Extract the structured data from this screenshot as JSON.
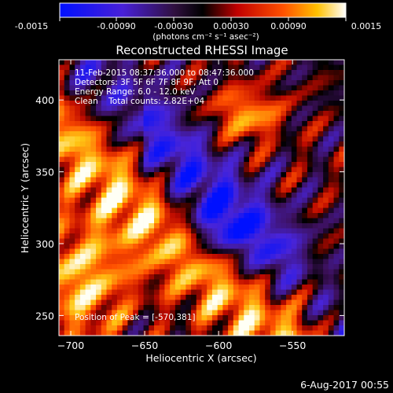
{
  "colorbar": {
    "ticks": [
      "-0.0015",
      "-0.00090",
      "-0.00030",
      "0.00030",
      "0.00090",
      "0.0015"
    ],
    "unit_label": "(photons cm⁻² s⁻¹ asec⁻²)",
    "min": -0.0015,
    "max": 0.0015
  },
  "chart_data": {
    "type": "heatmap",
    "title": "Reconstructed RHESSI Image",
    "xlabel": "Heliocentric X (arcsec)",
    "ylabel": "Heliocentric Y (arcsec)",
    "xlim": [
      -708,
      -515
    ],
    "ylim": [
      236,
      428
    ],
    "xticks": [
      -700,
      -650,
      -600,
      -550
    ],
    "yticks": [
      250,
      300,
      350,
      400
    ],
    "peak": {
      "x": -570,
      "y": 381
    },
    "colormap": [
      "#0000ff",
      "#5a2cc8",
      "#3a0a3a",
      "#000000",
      "#ff2000",
      "#ffb000",
      "#ffffff"
    ],
    "annotations": [
      "11-Feb-2015 08:37:36.000 to 08:47:36.000",
      "Detectors: 3F 5F 6F 7F 8F 9F, Att 0",
      "Energy Range: 6.0 - 12.0 keV",
      "Clean    Total counts: 2.82E+04",
      "Position of Peak = [-570,381]"
    ]
  },
  "footer": {
    "timestamp": "6-Aug-2017 00:55"
  }
}
